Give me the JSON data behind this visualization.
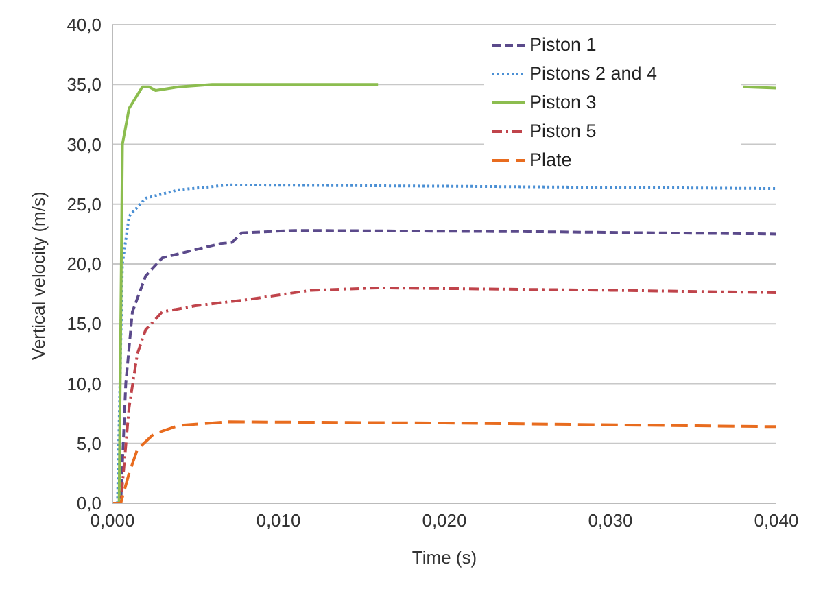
{
  "chart_data": {
    "type": "line",
    "xlabel": "Time (s)",
    "ylabel": "Vertical velocity (m/s)",
    "xlim": [
      0,
      0.04
    ],
    "ylim": [
      0,
      40
    ],
    "xticks": [
      {
        "value": 0,
        "label": "0,000"
      },
      {
        "value": 0.01,
        "label": "0,010"
      },
      {
        "value": 0.02,
        "label": "0,020"
      },
      {
        "value": 0.03,
        "label": "0,030"
      },
      {
        "value": 0.04,
        "label": "0,040"
      }
    ],
    "yticks": [
      {
        "value": 0,
        "label": "0,0"
      },
      {
        "value": 5,
        "label": "5,0"
      },
      {
        "value": 10,
        "label": "10,0"
      },
      {
        "value": 15,
        "label": "15,0"
      },
      {
        "value": 20,
        "label": "20,0"
      },
      {
        "value": 25,
        "label": "25,0"
      },
      {
        "value": 30,
        "label": "30,0"
      },
      {
        "value": 35,
        "label": "35,0"
      },
      {
        "value": 40,
        "label": "40,0"
      }
    ],
    "grid": "y",
    "legend": "top right",
    "marker": "none",
    "series": [
      {
        "name": "Piston 1",
        "color": "#5b4a8b",
        "line_style": "dashed",
        "x": [
          0,
          0.0005,
          0.0008,
          0.0012,
          0.002,
          0.003,
          0.005,
          0.0065,
          0.0072,
          0.0078,
          0.011,
          0.025,
          0.04
        ],
        "values": [
          0,
          0,
          10,
          16,
          19,
          20.5,
          21.2,
          21.7,
          21.8,
          22.6,
          22.8,
          22.7,
          22.5
        ]
      },
      {
        "name": "Pistons 2 and 4",
        "color": "#4a8fd4",
        "line_style": "dotted",
        "x": [
          0,
          0.0003,
          0.0006,
          0.001,
          0.002,
          0.004,
          0.007,
          0.02,
          0.04
        ],
        "values": [
          0,
          0,
          20,
          24,
          25.5,
          26.2,
          26.6,
          26.5,
          26.3
        ]
      },
      {
        "name": "Piston 3",
        "color": "#8cbd4f",
        "line_style": "solid",
        "x": [
          0,
          0.0004,
          0.0006,
          0.001,
          0.0018,
          0.0022,
          0.0026,
          0.004,
          0.006,
          0.016,
          0.025,
          0.038,
          0.04
        ],
        "values": [
          0,
          0,
          30,
          33,
          34.8,
          34.8,
          34.5,
          34.8,
          35,
          35,
          null,
          34.8,
          34.7
        ]
      },
      {
        "name": "Piston 5",
        "color": "#c0444b",
        "line_style": "dashdot",
        "x": [
          0,
          0.0005,
          0.001,
          0.0015,
          0.002,
          0.003,
          0.005,
          0.008,
          0.012,
          0.016,
          0.03,
          0.04
        ],
        "values": [
          0,
          0,
          8,
          12.5,
          14.5,
          16,
          16.5,
          17,
          17.8,
          18,
          17.8,
          17.6
        ]
      },
      {
        "name": "Plate",
        "color": "#e86c1f",
        "line_style": "longdash",
        "x": [
          0,
          0.0005,
          0.001,
          0.0015,
          0.0025,
          0.004,
          0.007,
          0.02,
          0.04
        ],
        "values": [
          0,
          0,
          2.5,
          4.5,
          5.8,
          6.5,
          6.8,
          6.7,
          6.4
        ]
      }
    ]
  }
}
